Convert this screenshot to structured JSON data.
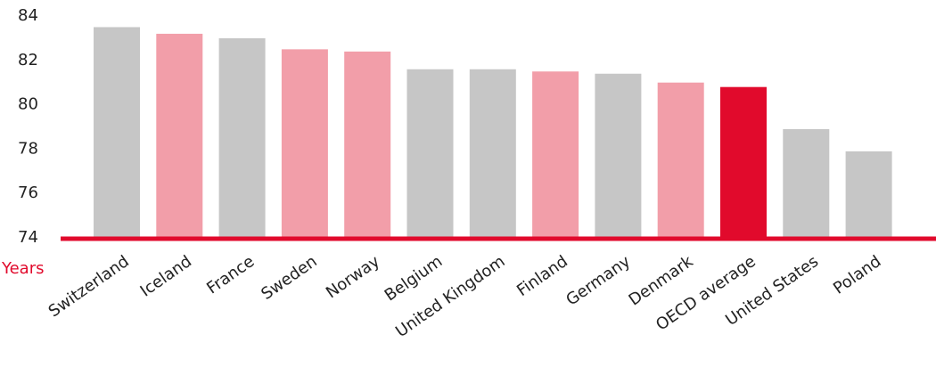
{
  "chart_data": {
    "type": "bar",
    "y_axis_label": "Years",
    "categories": [
      "Switzerland",
      "Iceland",
      "France",
      "Sweden",
      "Norway",
      "Belgium",
      "United Kingdom",
      "Finland",
      "Germany",
      "Denmark",
      "OECD average",
      "United States",
      "Poland"
    ],
    "values": [
      83.5,
      83.2,
      83.0,
      82.5,
      82.4,
      81.6,
      81.6,
      81.5,
      81.4,
      81.0,
      80.8,
      78.9,
      77.9
    ],
    "colors": [
      "#c6c6c6",
      "#f29ea9",
      "#c6c6c6",
      "#f29ea9",
      "#f29ea9",
      "#c6c6c6",
      "#c6c6c6",
      "#f29ea9",
      "#c6c6c6",
      "#f29ea9",
      "#e10a2c",
      "#c6c6c6",
      "#c6c6c6"
    ],
    "ylim": [
      74,
      84
    ],
    "yticks": [
      74,
      76,
      78,
      80,
      82,
      84
    ],
    "grid": false,
    "axis_color": "#e10a2c"
  }
}
